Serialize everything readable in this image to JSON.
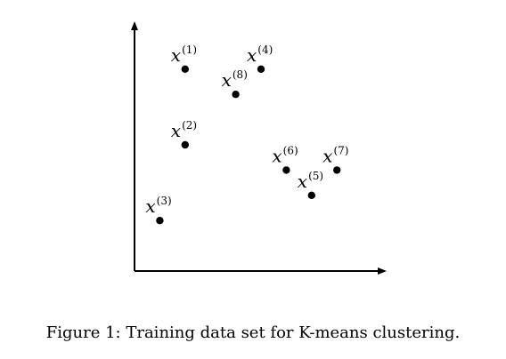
{
  "chart_data": {
    "type": "scatter",
    "title": "",
    "xlabel": "",
    "ylabel": "",
    "grid": false,
    "axes_ticks": false,
    "points": [
      {
        "label": "x",
        "index": "(1)",
        "x": 2,
        "y": 8
      },
      {
        "label": "x",
        "index": "(2)",
        "x": 2,
        "y": 5
      },
      {
        "label": "x",
        "index": "(3)",
        "x": 1,
        "y": 2
      },
      {
        "label": "x",
        "index": "(4)",
        "x": 5,
        "y": 8
      },
      {
        "label": "x",
        "index": "(5)",
        "x": 7,
        "y": 3
      },
      {
        "label": "x",
        "index": "(6)",
        "x": 6,
        "y": 4
      },
      {
        "label": "x",
        "index": "(7)",
        "x": 8,
        "y": 4
      },
      {
        "label": "x",
        "index": "(8)",
        "x": 4,
        "y": 7
      }
    ]
  },
  "caption": "Figure 1: Training data set for K-means clustering."
}
